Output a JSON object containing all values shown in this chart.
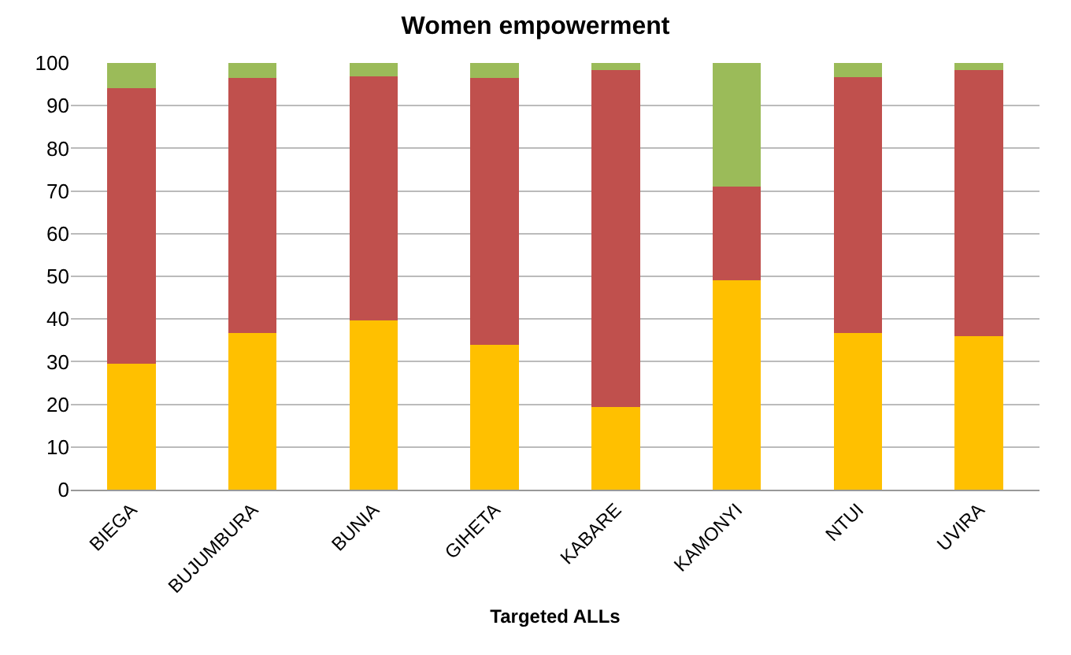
{
  "chart_data": {
    "type": "bar",
    "title": "Women empowerment",
    "xlabel": "Targeted ALLs",
    "stacked": true,
    "categories": [
      "BIEGA",
      "BUJUMBURA",
      "BUNIA",
      "GIHETA",
      "KABARE",
      "KAMONYI",
      "NTUI",
      "UVIRA"
    ],
    "series": [
      {
        "color": "#ffc000",
        "values": [
          29.5,
          36.7,
          39.7,
          33.9,
          19.3,
          49.1,
          36.7,
          35.9
        ]
      },
      {
        "color": "#c0504d",
        "values": [
          64.6,
          59.8,
          57.2,
          62.6,
          79.1,
          21.9,
          59.9,
          62.5
        ]
      },
      {
        "color": "#9bbb59",
        "values": [
          5.9,
          3.5,
          3.1,
          3.5,
          1.6,
          29.0,
          3.4,
          1.6
        ]
      }
    ],
    "ylim": [
      0,
      100
    ],
    "yticks": [
      0,
      10,
      20,
      30,
      40,
      50,
      60,
      70,
      80,
      90,
      100
    ],
    "grid": "y"
  }
}
